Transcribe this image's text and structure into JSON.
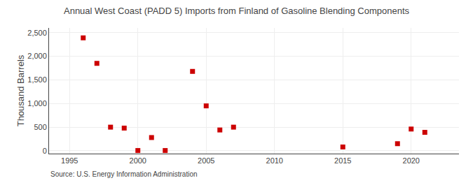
{
  "chart_data": {
    "type": "scatter",
    "title": "Annual West Coast (PADD 5) Imports from Finland of Gasoline Blending Components",
    "ylabel": "Thousand Barrels",
    "annotations": [
      "Source: U.S. Energy Information Administration"
    ],
    "x": [
      1996,
      1997,
      1998,
      1999,
      2000,
      2001,
      2002,
      2004,
      2005,
      2006,
      2007,
      2015,
      2019,
      2020,
      2021
    ],
    "values": [
      2390,
      1850,
      500,
      480,
      5,
      280,
      5,
      1680,
      950,
      440,
      500,
      80,
      150,
      460,
      390
    ],
    "color": "#cc0000",
    "marker": "square",
    "xlim": [
      1993.5,
      2023.5
    ],
    "ylim": [
      -60,
      2600
    ],
    "xticks": [
      1995,
      2000,
      2005,
      2010,
      2015,
      2020
    ],
    "yticks": [
      0,
      500,
      {
        "value": 1000,
        "label": "1,000"
      },
      {
        "value": 1500,
        "label": "1,500"
      },
      {
        "value": 2000,
        "label": "2,000"
      },
      {
        "value": 2500,
        "label": "2,500"
      }
    ],
    "grid": true
  }
}
